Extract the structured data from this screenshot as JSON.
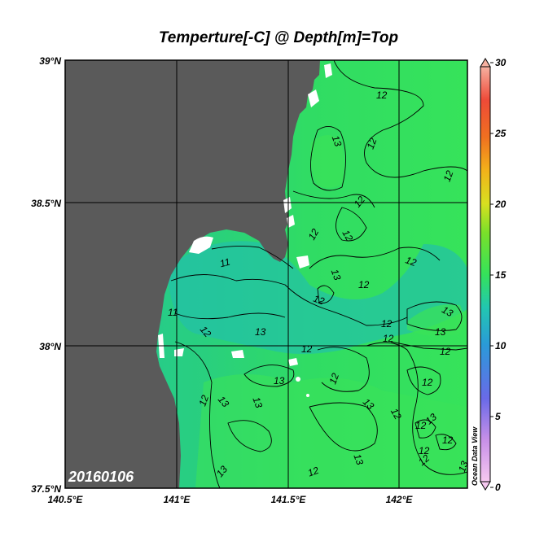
{
  "title": "Temperture[-C] @ Depth[m]=Top",
  "date_stamp": "20160106",
  "watermark": "Ocean Data View",
  "axes": {
    "x_ticks": [
      "140.5°E",
      "141°E",
      "141.5°E",
      "142°E"
    ],
    "y_ticks": [
      "39°N",
      "38.5°N",
      "38°N",
      "37.5°N"
    ]
  },
  "colorbar": {
    "ticks": [
      "30",
      "25",
      "20",
      "15",
      "10",
      "5",
      "0"
    ],
    "range": [
      0,
      30
    ]
  },
  "contour_labels": [
    "12",
    "13",
    "12",
    "12",
    "12",
    "12",
    "11",
    "12",
    "12",
    "13",
    "11",
    "12",
    "13",
    "12",
    "13",
    "12",
    "12",
    "12",
    "13",
    "12",
    "12",
    "13",
    "12",
    "12",
    "13",
    "12",
    "13",
    "12",
    "13",
    "12",
    "13",
    "12",
    "12",
    "12",
    "13",
    "13",
    "13",
    "12"
  ],
  "colors": {
    "land": "#5a5a5a",
    "ocean_warm": "#35e25a",
    "ocean_mid": "#25cc8a",
    "ocean_cool": "#1fb8c8",
    "missing": "#ffffff"
  }
}
